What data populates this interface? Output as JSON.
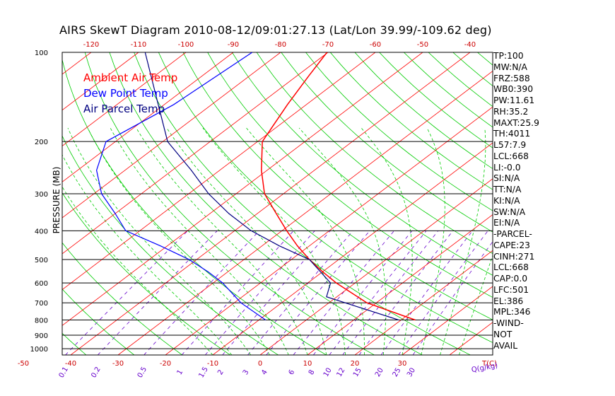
{
  "title": "AIRS SkewT Diagram 2010-08-12/09:01:27.13 (Lat/Lon 39.99/-109.62 deg)",
  "colors": {
    "ambient": "#ff0000",
    "dewpoint": "#0000ff",
    "parcel": "#000080",
    "dry_adiabat": "#00cc00",
    "moist_adiabat": "#00cc00",
    "mixing_ratio": "#6600cc",
    "isotherm": "#ff0000",
    "axis": "#000000"
  },
  "legend": [
    {
      "label": "Ambient Air Temp",
      "color": "#ff0000"
    },
    {
      "label": "Dew Point Temp",
      "color": "#0000ff"
    },
    {
      "label": "Air Parcel Temp",
      "color": "#000080"
    }
  ],
  "stats": [
    "TP:100",
    "MW:N/A",
    "FRZ:588",
    "WB0:390",
    "PW:11.61",
    "RH:35.2",
    "MAXT:25.9",
    "TH:4011",
    "L57:7.9",
    "LCL:668",
    "LI:-0.0",
    "SI:N/A",
    "TT:N/A",
    "KI:N/A",
    "SW:N/A",
    "EI:N/A",
    "-PARCEL-",
    "CAPE:23",
    "CINH:271",
    "LCL:668",
    "CAP:0.0",
    "LFC:501",
    "EL:386",
    "MPL:346",
    "-WIND-",
    " NOT",
    " AVAIL"
  ],
  "chart_data": {
    "type": "line",
    "title": "AIRS SkewT Diagram 2010-08-12/09:01:27.13 (Lat/Lon 39.99/-109.62 deg)",
    "ylabel": "PRESSURE (MB)",
    "xlabel": "T(C)",
    "y_log_scale": true,
    "ylim": [
      1100,
      100
    ],
    "pressure_ticks": [
      100,
      200,
      300,
      400,
      500,
      600,
      700,
      800,
      900,
      1000
    ],
    "temperature_ticks_bottom": [
      -50,
      -40,
      -30,
      -20,
      -10,
      0,
      10,
      20,
      30
    ],
    "temperature_ticks_top": [
      -120,
      -110,
      -100,
      -90,
      -80,
      -70,
      -60,
      -50,
      -40
    ],
    "mixing_ratio_label": "Q(g/kg)",
    "mixing_ratio_ticks": [
      "0.1",
      "0.2",
      "0.5",
      "1",
      "1.5",
      "2",
      "3",
      "4",
      "6",
      "8",
      "10",
      "12",
      "15",
      "20",
      "25",
      "30"
    ],
    "series": [
      {
        "name": "Ambient Air Temp",
        "p": [
          100,
          120,
          150,
          200,
          250,
          300,
          350,
          400,
          450,
          500,
          550,
          600,
          700,
          800
        ],
        "t": [
          -70.2,
          -67.5,
          -64,
          -59,
          -51.2,
          -44,
          -36,
          -29,
          -22.5,
          -16.2,
          -10,
          -4,
          8,
          23
        ]
      },
      {
        "name": "Dew Point Temp",
        "p": [
          100,
          150,
          200,
          250,
          300,
          350,
          400,
          450,
          500,
          550,
          600,
          700,
          800
        ],
        "t": [
          -86,
          -88,
          -92,
          -86,
          -78.4,
          -70,
          -63,
          -51.4,
          -41.6,
          -34.2,
          -28,
          -18.6,
          -8.6
        ]
      },
      {
        "name": "Air Parcel Temp",
        "p": [
          100,
          150,
          200,
          250,
          300,
          350,
          400,
          450,
          500,
          600,
          668,
          800
        ],
        "t": [
          -108.6,
          -91.3,
          -79,
          -66,
          -55.8,
          -46,
          -36.5,
          -26.3,
          -16.2,
          -5.2,
          -2.2,
          19.5
        ]
      }
    ]
  }
}
